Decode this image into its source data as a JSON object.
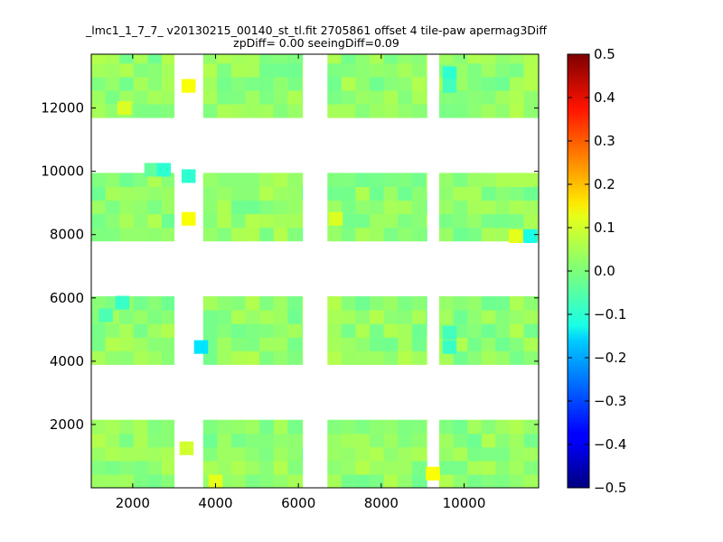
{
  "chart_data": {
    "type": "heatmap",
    "title": "_lmc1_1_7_7_ v20130215_00140_st_tl.fit 2705861 offset 4 tile-paw apermag3Diff",
    "subtitle": "zpDiff= 0.00 seeingDiff=0.09",
    "xlabel": "",
    "ylabel": "",
    "xlim": [
      1000,
      11800
    ],
    "ylim": [
      0,
      13700
    ],
    "x_ticks": [
      2000,
      4000,
      6000,
      8000,
      10000
    ],
    "y_ticks": [
      2000,
      4000,
      6000,
      8000,
      10000,
      12000
    ],
    "grid": false,
    "colorbar": {
      "colormap": "jet",
      "range": [
        -0.5,
        0.5
      ],
      "ticks": [
        "0.5",
        "0.4",
        "0.3",
        "0.2",
        "0.1",
        "0.0",
        "−0.1",
        "−0.2",
        "−0.3",
        "−0.4",
        "−0.5"
      ]
    },
    "cell_size": [
      340,
      430
    ],
    "columns_x": [
      1000,
      3700,
      6700,
      9400
    ],
    "column_widths": [
      2000,
      2400,
      2400,
      2400
    ],
    "rows_y": [
      0,
      3900,
      7800,
      11700
    ],
    "row_heights": [
      2150,
      2150,
      2150,
      2000
    ],
    "typical_value": 0.02,
    "outliers": [
      {
        "x": 3350,
        "y": 12700,
        "value": 0.12
      },
      {
        "x": 3350,
        "y": 8500,
        "value": 0.12
      },
      {
        "x": 3350,
        "y": 9850,
        "value": -0.08
      },
      {
        "x": 3650,
        "y": 4450,
        "value": -0.15
      },
      {
        "x": 1750,
        "y": 5850,
        "value": -0.07
      },
      {
        "x": 1350,
        "y": 5450,
        "value": -0.05
      },
      {
        "x": 9650,
        "y": 13100,
        "value": -0.08
      },
      {
        "x": 9650,
        "y": 12700,
        "value": -0.06
      },
      {
        "x": 9650,
        "y": 4900,
        "value": -0.06
      },
      {
        "x": 9650,
        "y": 4450,
        "value": -0.07
      },
      {
        "x": 11600,
        "y": 7950,
        "value": -0.1
      },
      {
        "x": 11250,
        "y": 7950,
        "value": 0.1
      },
      {
        "x": 2450,
        "y": 10050,
        "value": -0.03
      },
      {
        "x": 2750,
        "y": 10050,
        "value": -0.08
      },
      {
        "x": 9250,
        "y": 450,
        "value": 0.12
      },
      {
        "x": 4000,
        "y": 200,
        "value": 0.1
      },
      {
        "x": 6900,
        "y": 8500,
        "value": 0.09
      },
      {
        "x": 3300,
        "y": 1250,
        "value": 0.08
      },
      {
        "x": 1800,
        "y": 12000,
        "value": 0.09
      }
    ]
  }
}
